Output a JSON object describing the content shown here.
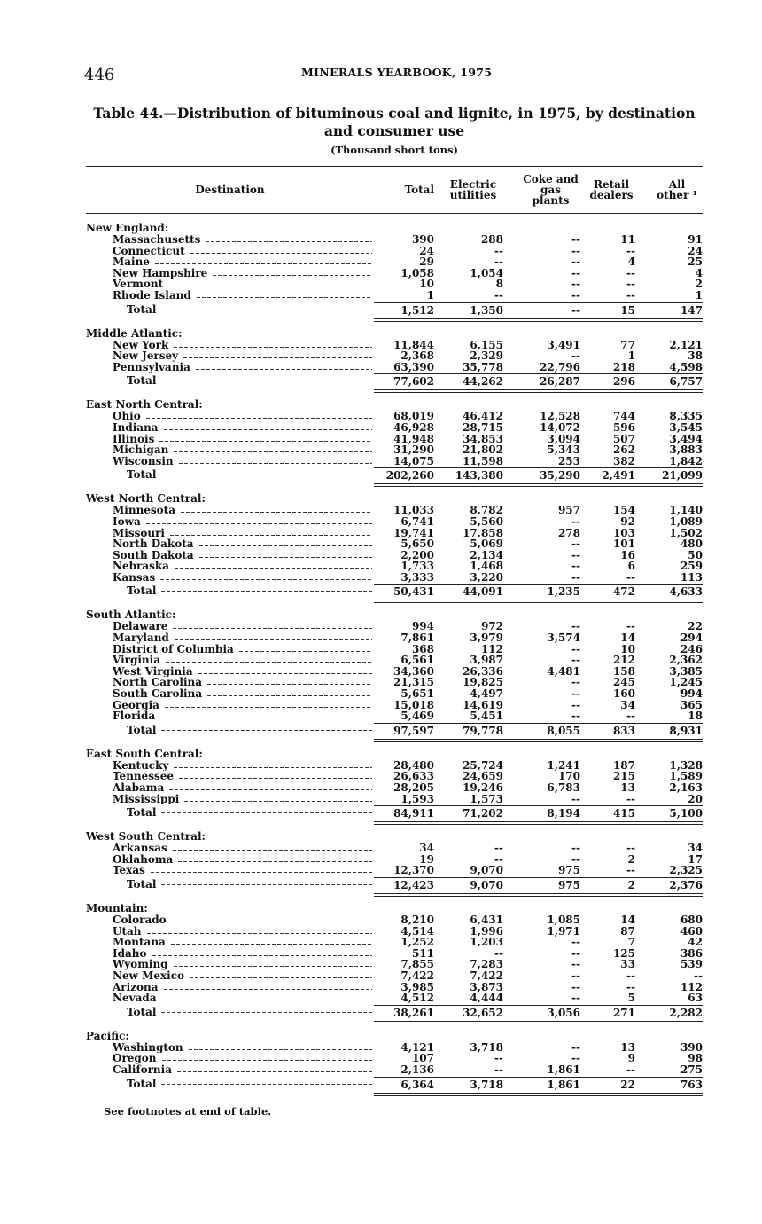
{
  "page": {
    "number": "446",
    "running_head": "MINERALS YEARBOOK, 1975"
  },
  "table": {
    "title": "Table 44.—Distribution of bituminous coal and lignite, in 1975, by destination and consumer use",
    "subtitle": "(Thousand short tons)",
    "headers": [
      "Destination",
      "Total",
      "Electric utilities",
      "Coke and gas plants",
      "Retail dealers",
      "All other ¹"
    ],
    "groups": [
      {
        "name": "New England:",
        "rows": [
          [
            "Massachusetts",
            "390",
            "288",
            "--",
            "11",
            "91"
          ],
          [
            "Connecticut",
            "24",
            "--",
            "--",
            "--",
            "24"
          ],
          [
            "Maine",
            "29",
            "--",
            "--",
            "4",
            "25"
          ],
          [
            "New Hampshire",
            "1,058",
            "1,054",
            "--",
            "--",
            "4"
          ],
          [
            "Vermont",
            "10",
            "8",
            "--",
            "--",
            "2"
          ],
          [
            "Rhode Island",
            "1",
            "--",
            "--",
            "--",
            "1"
          ]
        ],
        "total": [
          "Total",
          "1,512",
          "1,350",
          "--",
          "15",
          "147"
        ]
      },
      {
        "name": "Middle Atlantic:",
        "rows": [
          [
            "New York",
            "11,844",
            "6,155",
            "3,491",
            "77",
            "2,121"
          ],
          [
            "New Jersey",
            "2,368",
            "2,329",
            "--",
            "1",
            "38"
          ],
          [
            "Pennsylvania",
            "63,390",
            "35,778",
            "22,796",
            "218",
            "4,598"
          ]
        ],
        "total": [
          "Total",
          "77,602",
          "44,262",
          "26,287",
          "296",
          "6,757"
        ]
      },
      {
        "name": "East North Central:",
        "rows": [
          [
            "Ohio",
            "68,019",
            "46,412",
            "12,528",
            "744",
            "8,335"
          ],
          [
            "Indiana",
            "46,928",
            "28,715",
            "14,072",
            "596",
            "3,545"
          ],
          [
            "Illinois",
            "41,948",
            "34,853",
            "3,094",
            "507",
            "3,494"
          ],
          [
            "Michigan",
            "31,290",
            "21,802",
            "5,343",
            "262",
            "3,883"
          ],
          [
            "Wisconsin",
            "14,075",
            "11,598",
            "253",
            "382",
            "1,842"
          ]
        ],
        "total": [
          "Total",
          "202,260",
          "143,380",
          "35,290",
          "2,491",
          "21,099"
        ]
      },
      {
        "name": "West North Central:",
        "rows": [
          [
            "Minnesota",
            "11,033",
            "8,782",
            "957",
            "154",
            "1,140"
          ],
          [
            "Iowa",
            "6,741",
            "5,560",
            "--",
            "92",
            "1,089"
          ],
          [
            "Missouri",
            "19,741",
            "17,858",
            "278",
            "103",
            "1,502"
          ],
          [
            "North Dakota",
            "5,650",
            "5,069",
            "--",
            "101",
            "480"
          ],
          [
            "South Dakota",
            "2,200",
            "2,134",
            "--",
            "16",
            "50"
          ],
          [
            "Nebraska",
            "1,733",
            "1,468",
            "--",
            "6",
            "259"
          ],
          [
            "Kansas",
            "3,333",
            "3,220",
            "--",
            "--",
            "113"
          ]
        ],
        "total": [
          "Total",
          "50,431",
          "44,091",
          "1,235",
          "472",
          "4,633"
        ]
      },
      {
        "name": "South Atlantic:",
        "rows": [
          [
            "Delaware",
            "994",
            "972",
            "--",
            "--",
            "22"
          ],
          [
            "Maryland",
            "7,861",
            "3,979",
            "3,574",
            "14",
            "294"
          ],
          [
            "District of Columbia",
            "368",
            "112",
            "--",
            "10",
            "246"
          ],
          [
            "Virginia",
            "6,561",
            "3,987",
            "--",
            "212",
            "2,362"
          ],
          [
            "West Virginia",
            "34,360",
            "26,336",
            "4,481",
            "158",
            "3,385"
          ],
          [
            "North Carolina",
            "21,315",
            "19,825",
            "--",
            "245",
            "1,245"
          ],
          [
            "South Carolina",
            "5,651",
            "4,497",
            "--",
            "160",
            "994"
          ],
          [
            "Georgia",
            "15,018",
            "14,619",
            "--",
            "34",
            "365"
          ],
          [
            "Florida",
            "5,469",
            "5,451",
            "--",
            "--",
            "18"
          ]
        ],
        "total": [
          "Total",
          "97,597",
          "79,778",
          "8,055",
          "833",
          "8,931"
        ]
      },
      {
        "name": "East South Central:",
        "rows": [
          [
            "Kentucky",
            "28,480",
            "25,724",
            "1,241",
            "187",
            "1,328"
          ],
          [
            "Tennessee",
            "26,633",
            "24,659",
            "170",
            "215",
            "1,589"
          ],
          [
            "Alabama",
            "28,205",
            "19,246",
            "6,783",
            "13",
            "2,163"
          ],
          [
            "Mississippi",
            "1,593",
            "1,573",
            "--",
            "--",
            "20"
          ]
        ],
        "total": [
          "Total",
          "84,911",
          "71,202",
          "8,194",
          "415",
          "5,100"
        ]
      },
      {
        "name": "West South Central:",
        "rows": [
          [
            "Arkansas",
            "34",
            "--",
            "--",
            "--",
            "34"
          ],
          [
            "Oklahoma",
            "19",
            "--",
            "--",
            "2",
            "17"
          ],
          [
            "Texas",
            "12,370",
            "9,070",
            "975",
            "--",
            "2,325"
          ]
        ],
        "total": [
          "Total",
          "12,423",
          "9,070",
          "975",
          "2",
          "2,376"
        ]
      },
      {
        "name": "Mountain:",
        "rows": [
          [
            "Colorado",
            "8,210",
            "6,431",
            "1,085",
            "14",
            "680"
          ],
          [
            "Utah",
            "4,514",
            "1,996",
            "1,971",
            "87",
            "460"
          ],
          [
            "Montana",
            "1,252",
            "1,203",
            "--",
            "7",
            "42"
          ],
          [
            "Idaho",
            "511",
            "--",
            "--",
            "125",
            "386"
          ],
          [
            "Wyoming",
            "7,855",
            "7,283",
            "--",
            "33",
            "539"
          ],
          [
            "New Mexico",
            "7,422",
            "7,422",
            "--",
            "--",
            "--"
          ],
          [
            "Arizona",
            "3,985",
            "3,873",
            "--",
            "--",
            "112"
          ],
          [
            "Nevada",
            "4,512",
            "4,444",
            "--",
            "5",
            "63"
          ]
        ],
        "total": [
          "Total",
          "38,261",
          "32,652",
          "3,056",
          "271",
          "2,282"
        ]
      },
      {
        "name": "Pacific:",
        "rows": [
          [
            "Washington",
            "4,121",
            "3,718",
            "--",
            "13",
            "390"
          ],
          [
            "Oregon",
            "107",
            "--",
            "--",
            "9",
            "98"
          ],
          [
            "California",
            "2,136",
            "--",
            "1,861",
            "--",
            "275"
          ]
        ],
        "total": [
          "Total",
          "6,364",
          "3,718",
          "1,861",
          "22",
          "763"
        ]
      }
    ],
    "footnote": "See footnotes at end of table."
  }
}
